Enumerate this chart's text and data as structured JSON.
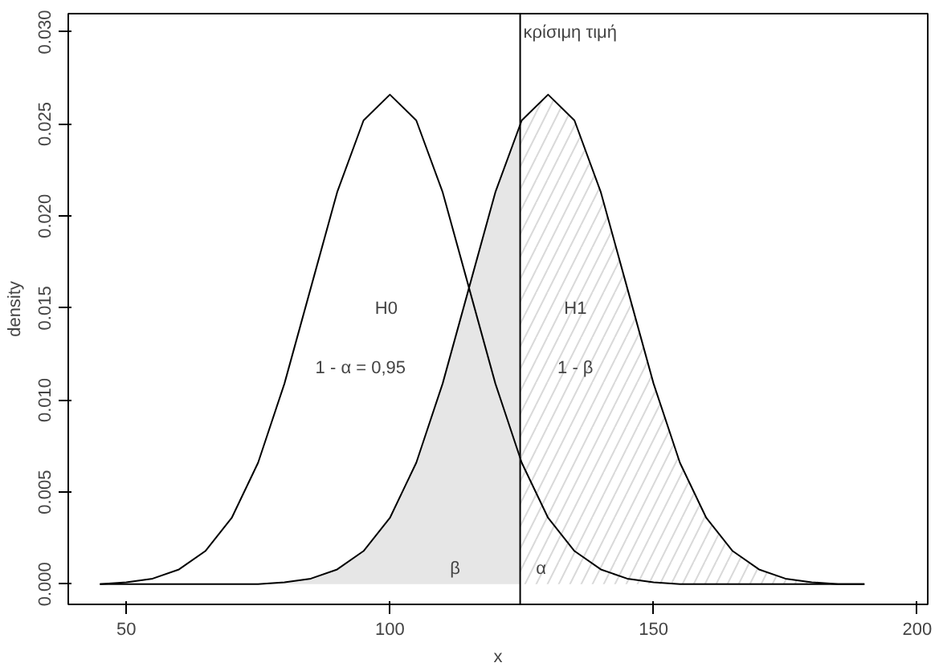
{
  "chart_data": {
    "type": "line",
    "xlabel": "x",
    "ylabel": "density",
    "xlim": [
      39,
      202
    ],
    "ylim": [
      -0.0011,
      0.031
    ],
    "xticks": [
      50,
      100,
      150,
      200
    ],
    "yticks": [
      {
        "value": 0,
        "label": "0.000"
      },
      {
        "value": 0.005,
        "label": "0.005"
      },
      {
        "value": 0.01,
        "label": "0.010"
      },
      {
        "value": 0.015,
        "label": "0.015"
      },
      {
        "value": 0.02,
        "label": "0.020"
      },
      {
        "value": 0.025,
        "label": "0.025"
      },
      {
        "value": 0.03,
        "label": "0.030"
      }
    ],
    "grid": false,
    "series": [
      {
        "type": "area",
        "color": "#e6e6e6",
        "x": [
          75,
          80,
          85,
          90,
          95,
          100,
          105,
          110,
          115,
          120,
          124.7
        ],
        "values": [
          0,
          0.0001,
          0.0003,
          0.0008,
          0.0018,
          0.0036,
          0.0066,
          0.0109,
          0.0161,
          0.0213,
          0.025
        ]
      },
      {
        "type": "area",
        "color": "#d9d9d9",
        "line_style": "dashed",
        "x": [
          124.7,
          125,
          130,
          135,
          140,
          145,
          150,
          155,
          160,
          165,
          170,
          175,
          180,
          185,
          190
        ],
        "values": [
          0.025,
          0.0252,
          0.0266,
          0.0252,
          0.0213,
          0.0161,
          0.0109,
          0.0066,
          0.0036,
          0.0018,
          0.0008,
          0.0003,
          0.0001,
          0,
          0
        ]
      },
      {
        "color": "#000000",
        "x": [
          45,
          50,
          55,
          60,
          65,
          70,
          75,
          80,
          85,
          90,
          95,
          100,
          105,
          110,
          115,
          120,
          125,
          130,
          135,
          140,
          145,
          150,
          155,
          160,
          170,
          180,
          190
        ],
        "values": [
          0,
          0.0001,
          0.0003,
          0.0008,
          0.0018,
          0.0036,
          0.0066,
          0.0109,
          0.0161,
          0.0213,
          0.0252,
          0.0266,
          0.0252,
          0.0213,
          0.0161,
          0.0109,
          0.0066,
          0.0036,
          0.0018,
          0.0008,
          0.0003,
          0.0001,
          0,
          0,
          0,
          0,
          0
        ]
      },
      {
        "color": "#000000",
        "x": [
          45,
          55,
          65,
          70,
          75,
          80,
          85,
          90,
          95,
          100,
          105,
          110,
          115,
          120,
          125,
          130,
          135,
          140,
          145,
          150,
          155,
          160,
          165,
          170,
          175,
          180,
          185,
          190
        ],
        "values": [
          0,
          0,
          0,
          0,
          0,
          0.0001,
          0.0003,
          0.0008,
          0.0018,
          0.0036,
          0.0066,
          0.0109,
          0.0161,
          0.0213,
          0.0252,
          0.0266,
          0.0252,
          0.0213,
          0.0161,
          0.0109,
          0.0066,
          0.0036,
          0.0018,
          0.0008,
          0.0003,
          0.0001,
          0,
          0
        ]
      }
    ],
    "ref_lines": [
      {
        "axis": "x",
        "value": 124.7,
        "label": "κρίσιμη τιμή",
        "color": "#000000"
      }
    ],
    "annotations": [
      "H0",
      "1 - α = 0,95",
      "H1",
      "1 - β",
      "β",
      "α"
    ]
  }
}
